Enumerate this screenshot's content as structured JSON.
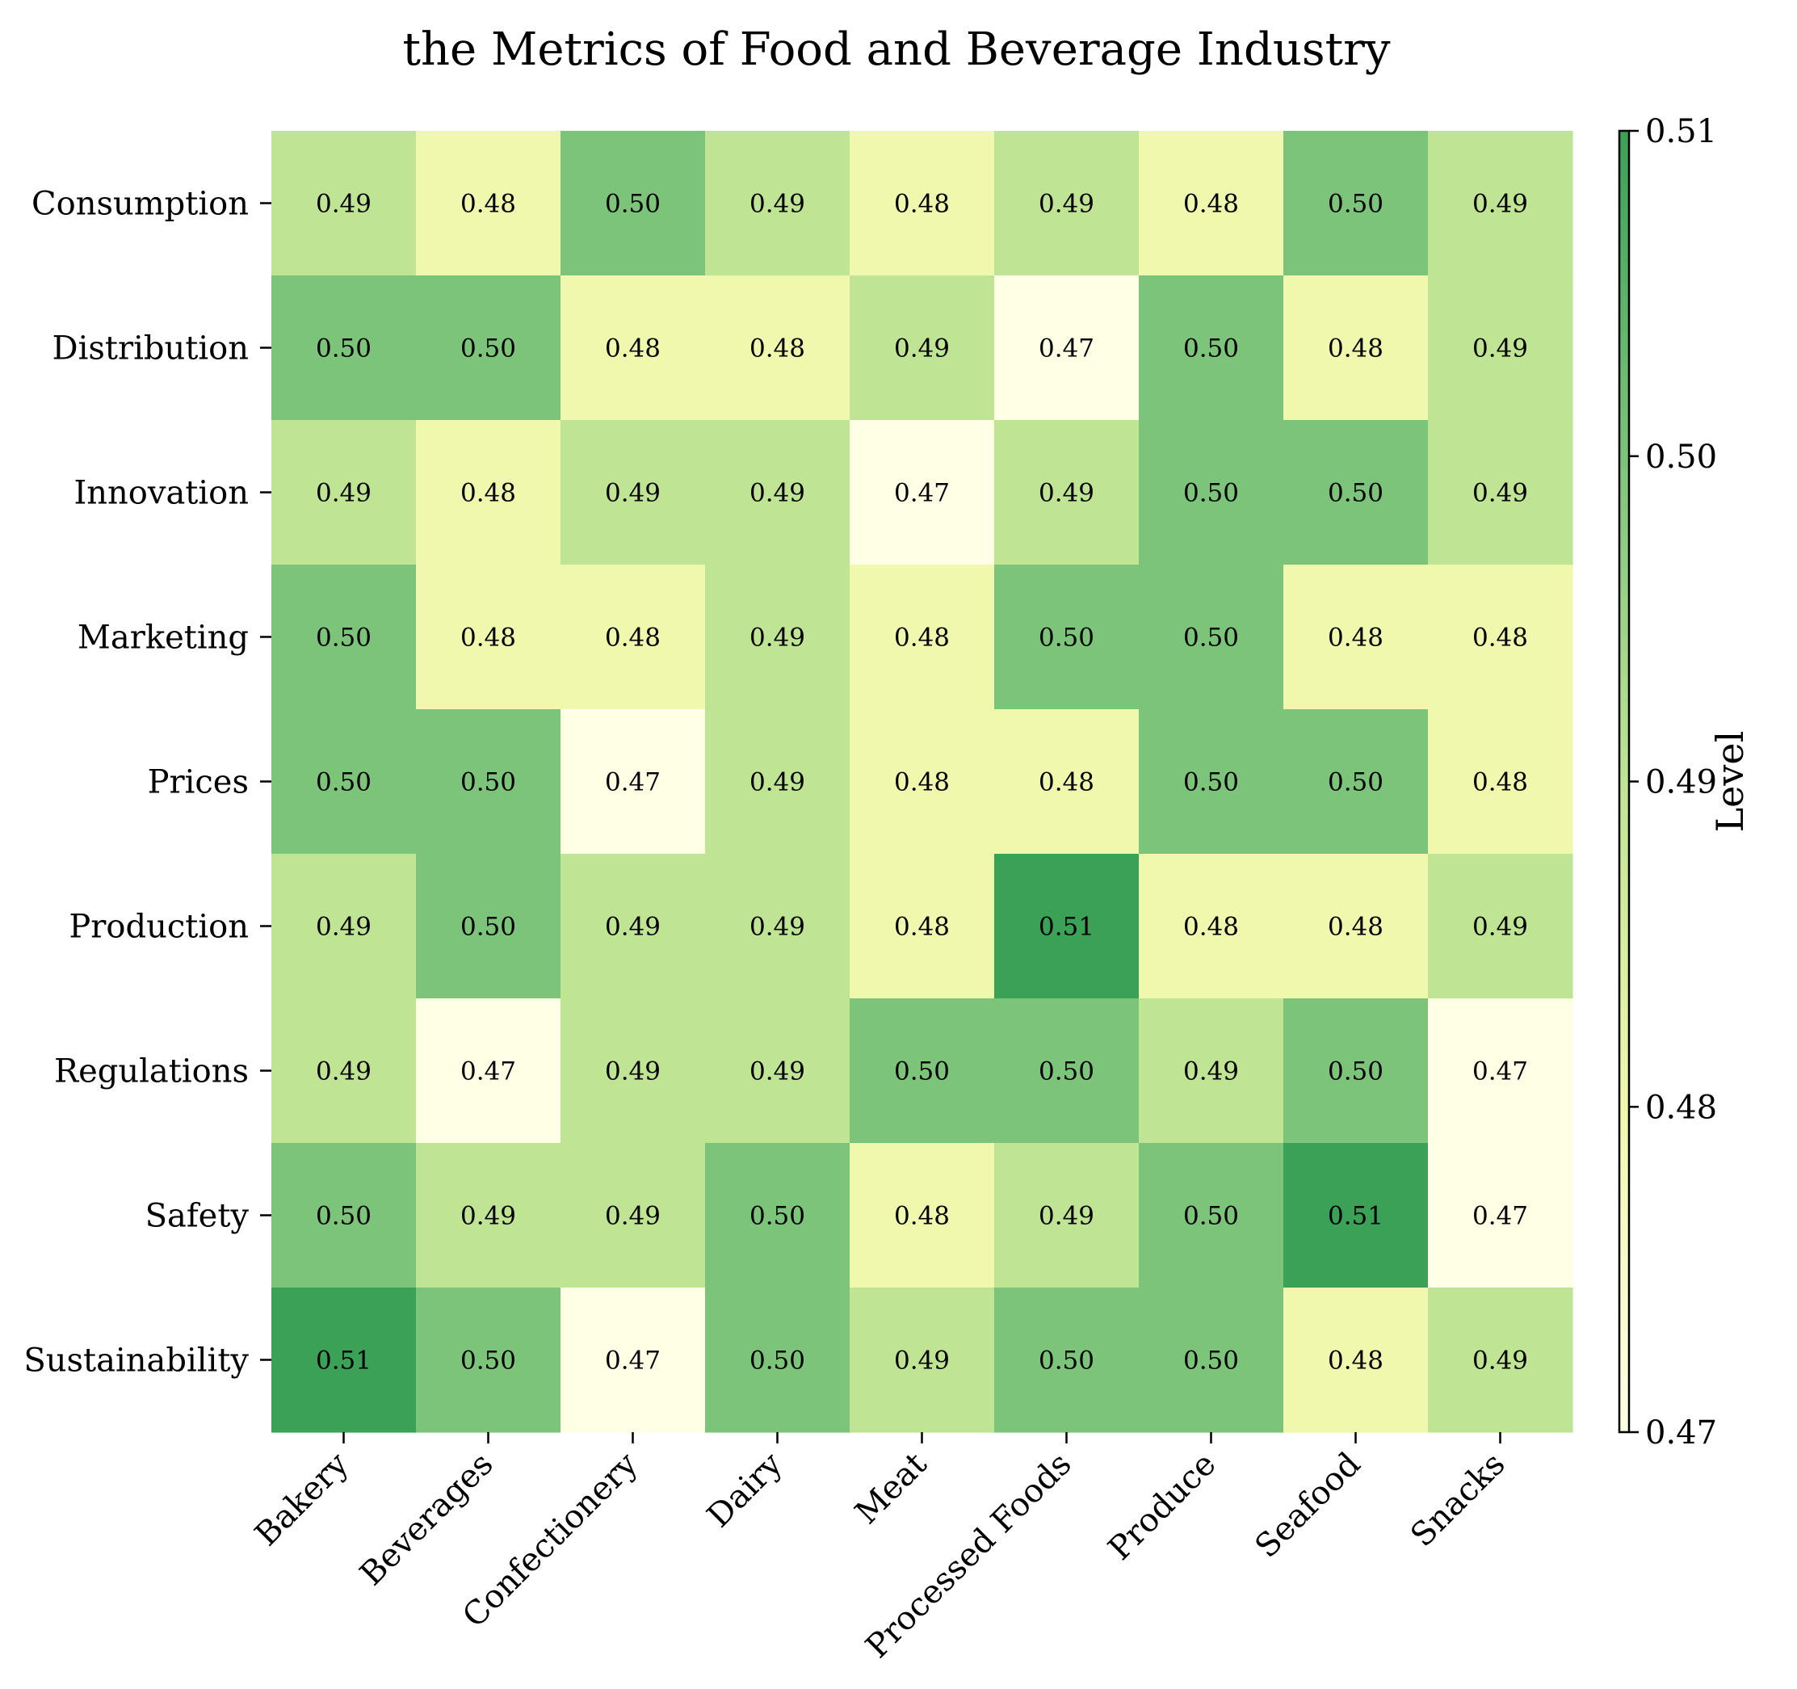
{
  "chart_data": {
    "type": "heatmap",
    "title": "the Metrics of Food and Beverage Industry",
    "x_categories": [
      "Bakery",
      "Beverages",
      "Confectionery",
      "Dairy",
      "Meat",
      "Processed Foods",
      "Produce",
      "Seafood",
      "Snacks"
    ],
    "y_categories": [
      "Consumption",
      "Distribution",
      "Innovation",
      "Marketing",
      "Prices",
      "Production",
      "Regulations",
      "Safety",
      "Sustainability"
    ],
    "values": [
      [
        0.49,
        0.48,
        0.5,
        0.49,
        0.48,
        0.49,
        0.48,
        0.5,
        0.49
      ],
      [
        0.5,
        0.5,
        0.48,
        0.48,
        0.49,
        0.47,
        0.5,
        0.48,
        0.49
      ],
      [
        0.49,
        0.48,
        0.49,
        0.49,
        0.47,
        0.49,
        0.5,
        0.5,
        0.49
      ],
      [
        0.5,
        0.48,
        0.48,
        0.49,
        0.48,
        0.5,
        0.5,
        0.48,
        0.48
      ],
      [
        0.5,
        0.5,
        0.47,
        0.49,
        0.48,
        0.48,
        0.5,
        0.5,
        0.48
      ],
      [
        0.49,
        0.5,
        0.49,
        0.49,
        0.48,
        0.51,
        0.48,
        0.48,
        0.49
      ],
      [
        0.49,
        0.47,
        0.49,
        0.49,
        0.5,
        0.5,
        0.49,
        0.5,
        0.47
      ],
      [
        0.5,
        0.49,
        0.49,
        0.5,
        0.48,
        0.49,
        0.5,
        0.51,
        0.47
      ],
      [
        0.51,
        0.5,
        0.47,
        0.5,
        0.49,
        0.5,
        0.5,
        0.48,
        0.49
      ]
    ],
    "cell_value_labels": [
      [
        "0.49",
        "0.48",
        "0.50",
        "0.49",
        "0.48",
        "0.49",
        "0.48",
        "0.50",
        "0.49"
      ],
      [
        "0.50",
        "0.50",
        "0.48",
        "0.48",
        "0.49",
        "0.47",
        "0.50",
        "0.48",
        "0.49"
      ],
      [
        "0.49",
        "0.48",
        "0.49",
        "0.49",
        "0.47",
        "0.49",
        "0.50",
        "0.50",
        "0.49"
      ],
      [
        "0.50",
        "0.48",
        "0.48",
        "0.49",
        "0.48",
        "0.50",
        "0.50",
        "0.48",
        "0.48"
      ],
      [
        "0.50",
        "0.50",
        "0.47",
        "0.49",
        "0.48",
        "0.48",
        "0.50",
        "0.50",
        "0.48"
      ],
      [
        "0.49",
        "0.50",
        "0.49",
        "0.49",
        "0.48",
        "0.51",
        "0.48",
        "0.48",
        "0.49"
      ],
      [
        "0.49",
        "0.47",
        "0.49",
        "0.49",
        "0.50",
        "0.50",
        "0.49",
        "0.50",
        "0.47"
      ],
      [
        "0.50",
        "0.49",
        "0.49",
        "0.50",
        "0.48",
        "0.49",
        "0.50",
        "0.51",
        "0.47"
      ],
      [
        "0.51",
        "0.50",
        "0.47",
        "0.50",
        "0.49",
        "0.50",
        "0.50",
        "0.48",
        "0.49"
      ]
    ],
    "colorbar": {
      "label": "Level",
      "range": [
        0.47,
        0.51
      ],
      "ticks": [
        0.47,
        0.48,
        0.49,
        0.5,
        0.51
      ],
      "tick_labels": [
        "0.47",
        "0.48",
        "0.49",
        "0.50",
        "0.51"
      ],
      "palette": [
        "#ffffe5",
        "#f0f8ae",
        "#bfe494",
        "#7cc47a",
        "#3aa157"
      ]
    },
    "grid": false,
    "legend": "colorbar-right"
  }
}
